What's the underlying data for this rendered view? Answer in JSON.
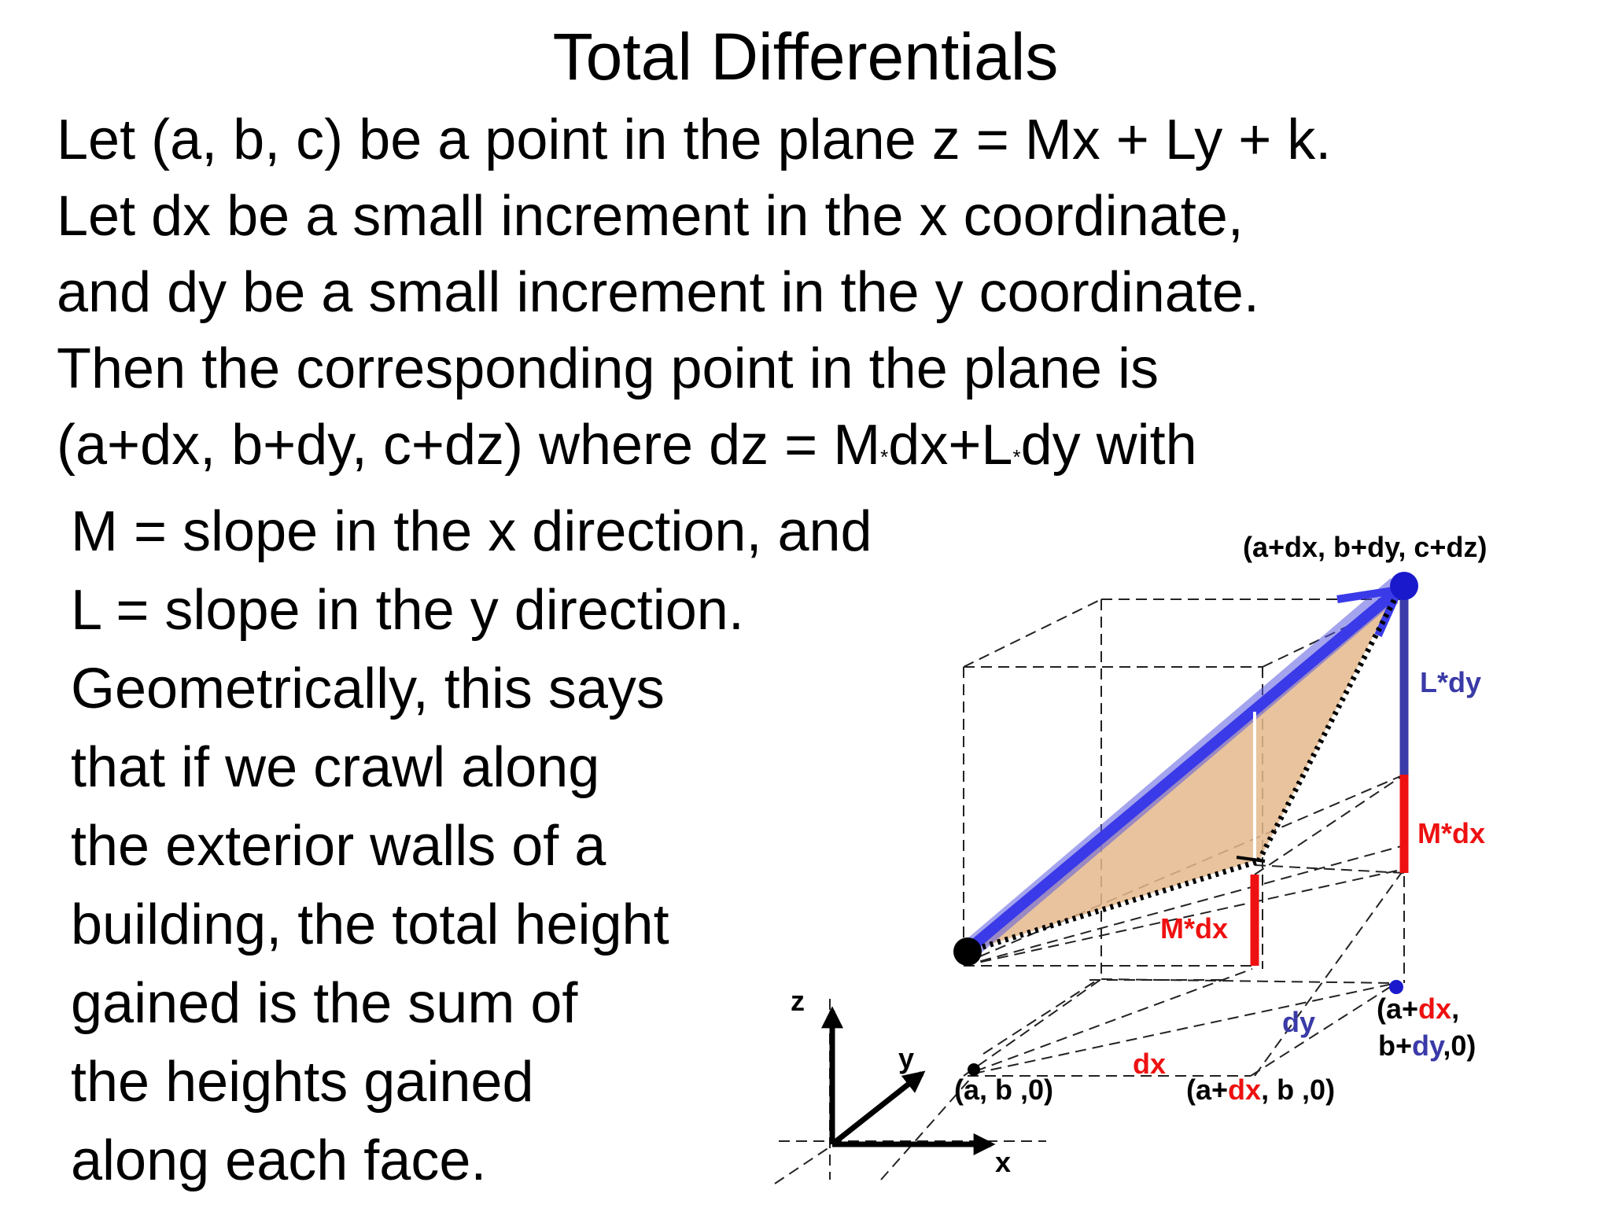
{
  "title": "Total Differentials",
  "paragraph": {
    "line1": "Let (a, b, c) be a point in the plane z = Mx + Ly + k.",
    "line2": "Let dx be a small increment in the x coordinate,",
    "line3": "and dy be a small increment in the y coordinate.",
    "line4": "Then the corresponding point in the plane is",
    "line5_a": "(a+dx, b+dy, c+dz) where dz = M",
    "line5_star1": "*",
    "line5_b": "dx+L",
    "line5_star2": "*",
    "line5_c": "dy with"
  },
  "slopes": {
    "m_line": "M = slope in the x direction, and",
    "l_line": "L = slope in the y direction."
  },
  "geometry_text": [
    "Geometrically, this says",
    "that if we crawl along",
    "the exterior walls of a",
    "building, the total height",
    "gained is the sum of",
    "the heights gained",
    "along each face."
  ],
  "diagram": {
    "top_point": "(a+dx, b+dy, c+dz)",
    "l_dy": "L*dy",
    "m_dx_right": "M*dx",
    "m_dx_mid": "M*dx",
    "dx": "dx",
    "dy": "dy",
    "base_a": "(a, b ,0)",
    "base_adx_open": "(a+",
    "base_adx_dx": "dx",
    "base_adx_rest": ", b ,0)",
    "corner_line1_open": "(a+",
    "corner_line1_dx": "dx",
    "corner_line1_close": ",",
    "corner_line2_open": "b+",
    "corner_line2_dy": "dy",
    "corner_line2_close": ",0)",
    "axis_z": "z",
    "axis_y": "y",
    "axis_x": "x"
  },
  "colors": {
    "red": "#ee1111",
    "blue": "#3a3aa8",
    "blue_bright": "#3a3ae8",
    "tan": "#e4b88c",
    "dot_blue": "#1a1acc"
  }
}
